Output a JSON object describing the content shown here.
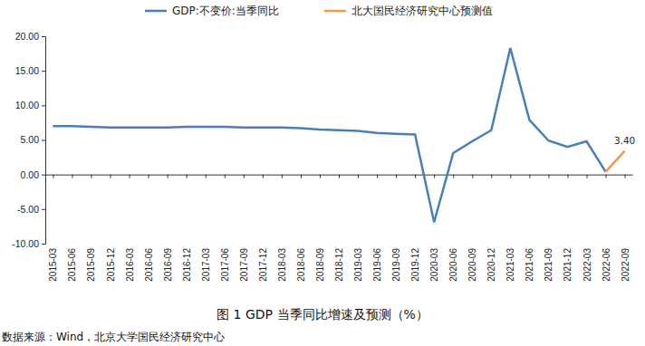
{
  "chart_data": {
    "type": "line",
    "title": "图 1   GDP 当季同比增速及预测（%）",
    "source": "数据来源：Wind，北京大学国民经济研究中心",
    "categories": [
      "2015-03",
      "2015-06",
      "2015-09",
      "2015-12",
      "2016-03",
      "2016-06",
      "2016-09",
      "2016-12",
      "2017-03",
      "2017-06",
      "2017-09",
      "2017-12",
      "2018-03",
      "2018-06",
      "2018-09",
      "2018-12",
      "2019-03",
      "2019-06",
      "2019-09",
      "2019-12",
      "2020-03",
      "2020-06",
      "2020-09",
      "2020-12",
      "2021-03",
      "2021-06",
      "2021-09",
      "2021-12",
      "2022-03",
      "2022-06",
      "2022-09"
    ],
    "series": [
      {
        "name": "GDP:不变价:当季同比",
        "color": "#4a7ebb",
        "values": [
          7.0,
          7.0,
          6.9,
          6.8,
          6.8,
          6.8,
          6.8,
          6.9,
          6.9,
          6.9,
          6.8,
          6.8,
          6.8,
          6.7,
          6.5,
          6.4,
          6.3,
          6.0,
          5.9,
          5.8,
          -6.9,
          3.1,
          4.8,
          6.4,
          18.3,
          7.9,
          4.9,
          4.0,
          4.8,
          0.4,
          null
        ]
      },
      {
        "name": "北大国民经济研究中心预测值",
        "color": "#f79646",
        "values": [
          null,
          null,
          null,
          null,
          null,
          null,
          null,
          null,
          null,
          null,
          null,
          null,
          null,
          null,
          null,
          null,
          null,
          null,
          null,
          null,
          null,
          null,
          null,
          null,
          null,
          null,
          null,
          null,
          null,
          0.4,
          3.4
        ],
        "data_labels": true,
        "value_labels": [
          null,
          null,
          null,
          null,
          null,
          null,
          null,
          null,
          null,
          null,
          null,
          null,
          null,
          null,
          null,
          null,
          null,
          null,
          null,
          null,
          null,
          null,
          null,
          null,
          null,
          null,
          null,
          null,
          null,
          null,
          "3.40"
        ]
      }
    ],
    "ylim": [
      -10,
      20
    ],
    "yticks": [
      {
        "value": -10,
        "label": "-10.00"
      },
      {
        "value": -5,
        "label": "-5.00"
      },
      {
        "value": 0,
        "label": "0.00"
      },
      {
        "value": 5,
        "label": "5.00"
      },
      {
        "value": 10,
        "label": "10.00"
      },
      {
        "value": 15,
        "label": "15.00"
      },
      {
        "value": 20,
        "label": "20.00"
      }
    ],
    "grid": false,
    "legend": "top"
  }
}
